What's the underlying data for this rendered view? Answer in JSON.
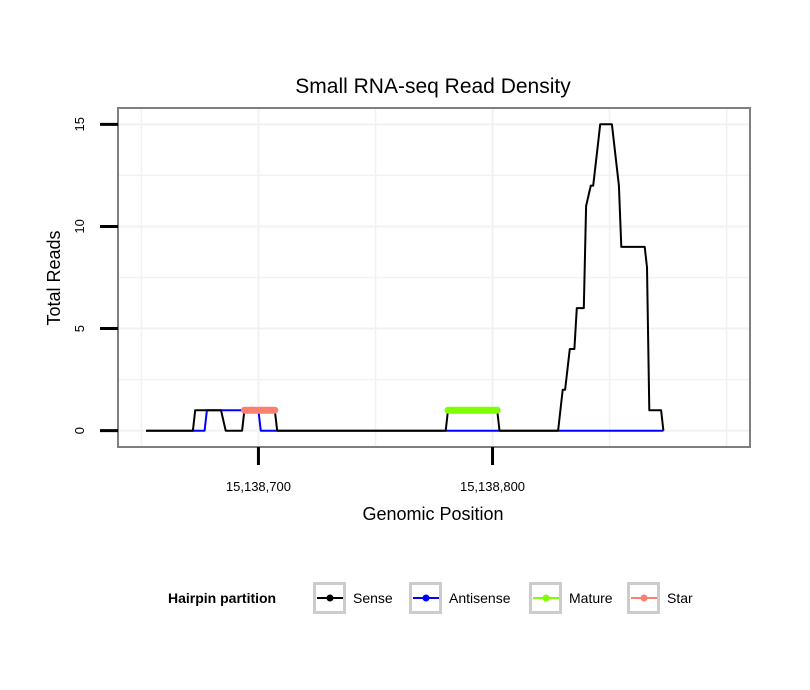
{
  "chart_data": {
    "type": "line",
    "title": "Small RNA-seq Read Density",
    "xlabel": "Genomic Position",
    "ylabel": "Total Reads",
    "xlim": [
      15138640,
      15138910
    ],
    "ylim": [
      -0.8,
      15.8
    ],
    "x_ticks": [
      15138700,
      15138800
    ],
    "x_tick_labels": [
      "15,138,700",
      "15,138,800"
    ],
    "y_ticks": [
      0,
      5,
      10,
      15
    ],
    "y_tick_labels": [
      "0",
      "5",
      "10",
      "15"
    ],
    "grid": true,
    "legend": {
      "title": "Hairpin partition",
      "position": "bottom",
      "entries": [
        {
          "label": "Sense",
          "color": "#000000"
        },
        {
          "label": "Antisense",
          "color": "#0000ff"
        },
        {
          "label": "Mature",
          "color": "#7fff00"
        },
        {
          "label": "Star",
          "color": "#fa8072"
        }
      ]
    },
    "series": [
      {
        "name": "Sense",
        "color": "#000000",
        "x": [
          15138652,
          15138672,
          15138673,
          15138684,
          15138686,
          15138693,
          15138694,
          15138707,
          15138708,
          15138780,
          15138781,
          15138802,
          15138803,
          15138828,
          15138830,
          15138831,
          15138833,
          15138835,
          15138836,
          15138839,
          15138840,
          15138842,
          15138843,
          15138845,
          15138846,
          15138848,
          15138851,
          15138854,
          15138855,
          15138858,
          15138865,
          15138866,
          15138867,
          15138872,
          15138873
        ],
        "values": [
          0,
          0,
          1,
          1,
          0,
          0,
          1,
          1,
          0,
          0,
          1,
          1,
          0,
          0,
          2,
          2,
          4,
          4,
          6,
          6,
          11,
          12,
          12,
          14,
          15,
          15,
          15,
          12,
          9,
          9,
          9,
          8,
          1,
          1,
          0
        ]
      },
      {
        "name": "Antisense",
        "color": "#0000ff",
        "x": [
          15138652,
          15138677,
          15138678,
          15138700,
          15138701,
          15138873
        ],
        "values": [
          0,
          0,
          1,
          1,
          0,
          0
        ]
      },
      {
        "name": "Mature",
        "color": "#7fff00",
        "x": [
          15138781,
          15138802
        ],
        "values": [
          1,
          1
        ]
      },
      {
        "name": "Star",
        "color": "#fa8072",
        "x": [
          15138694,
          15138707
        ],
        "values": [
          1,
          1
        ]
      }
    ]
  }
}
